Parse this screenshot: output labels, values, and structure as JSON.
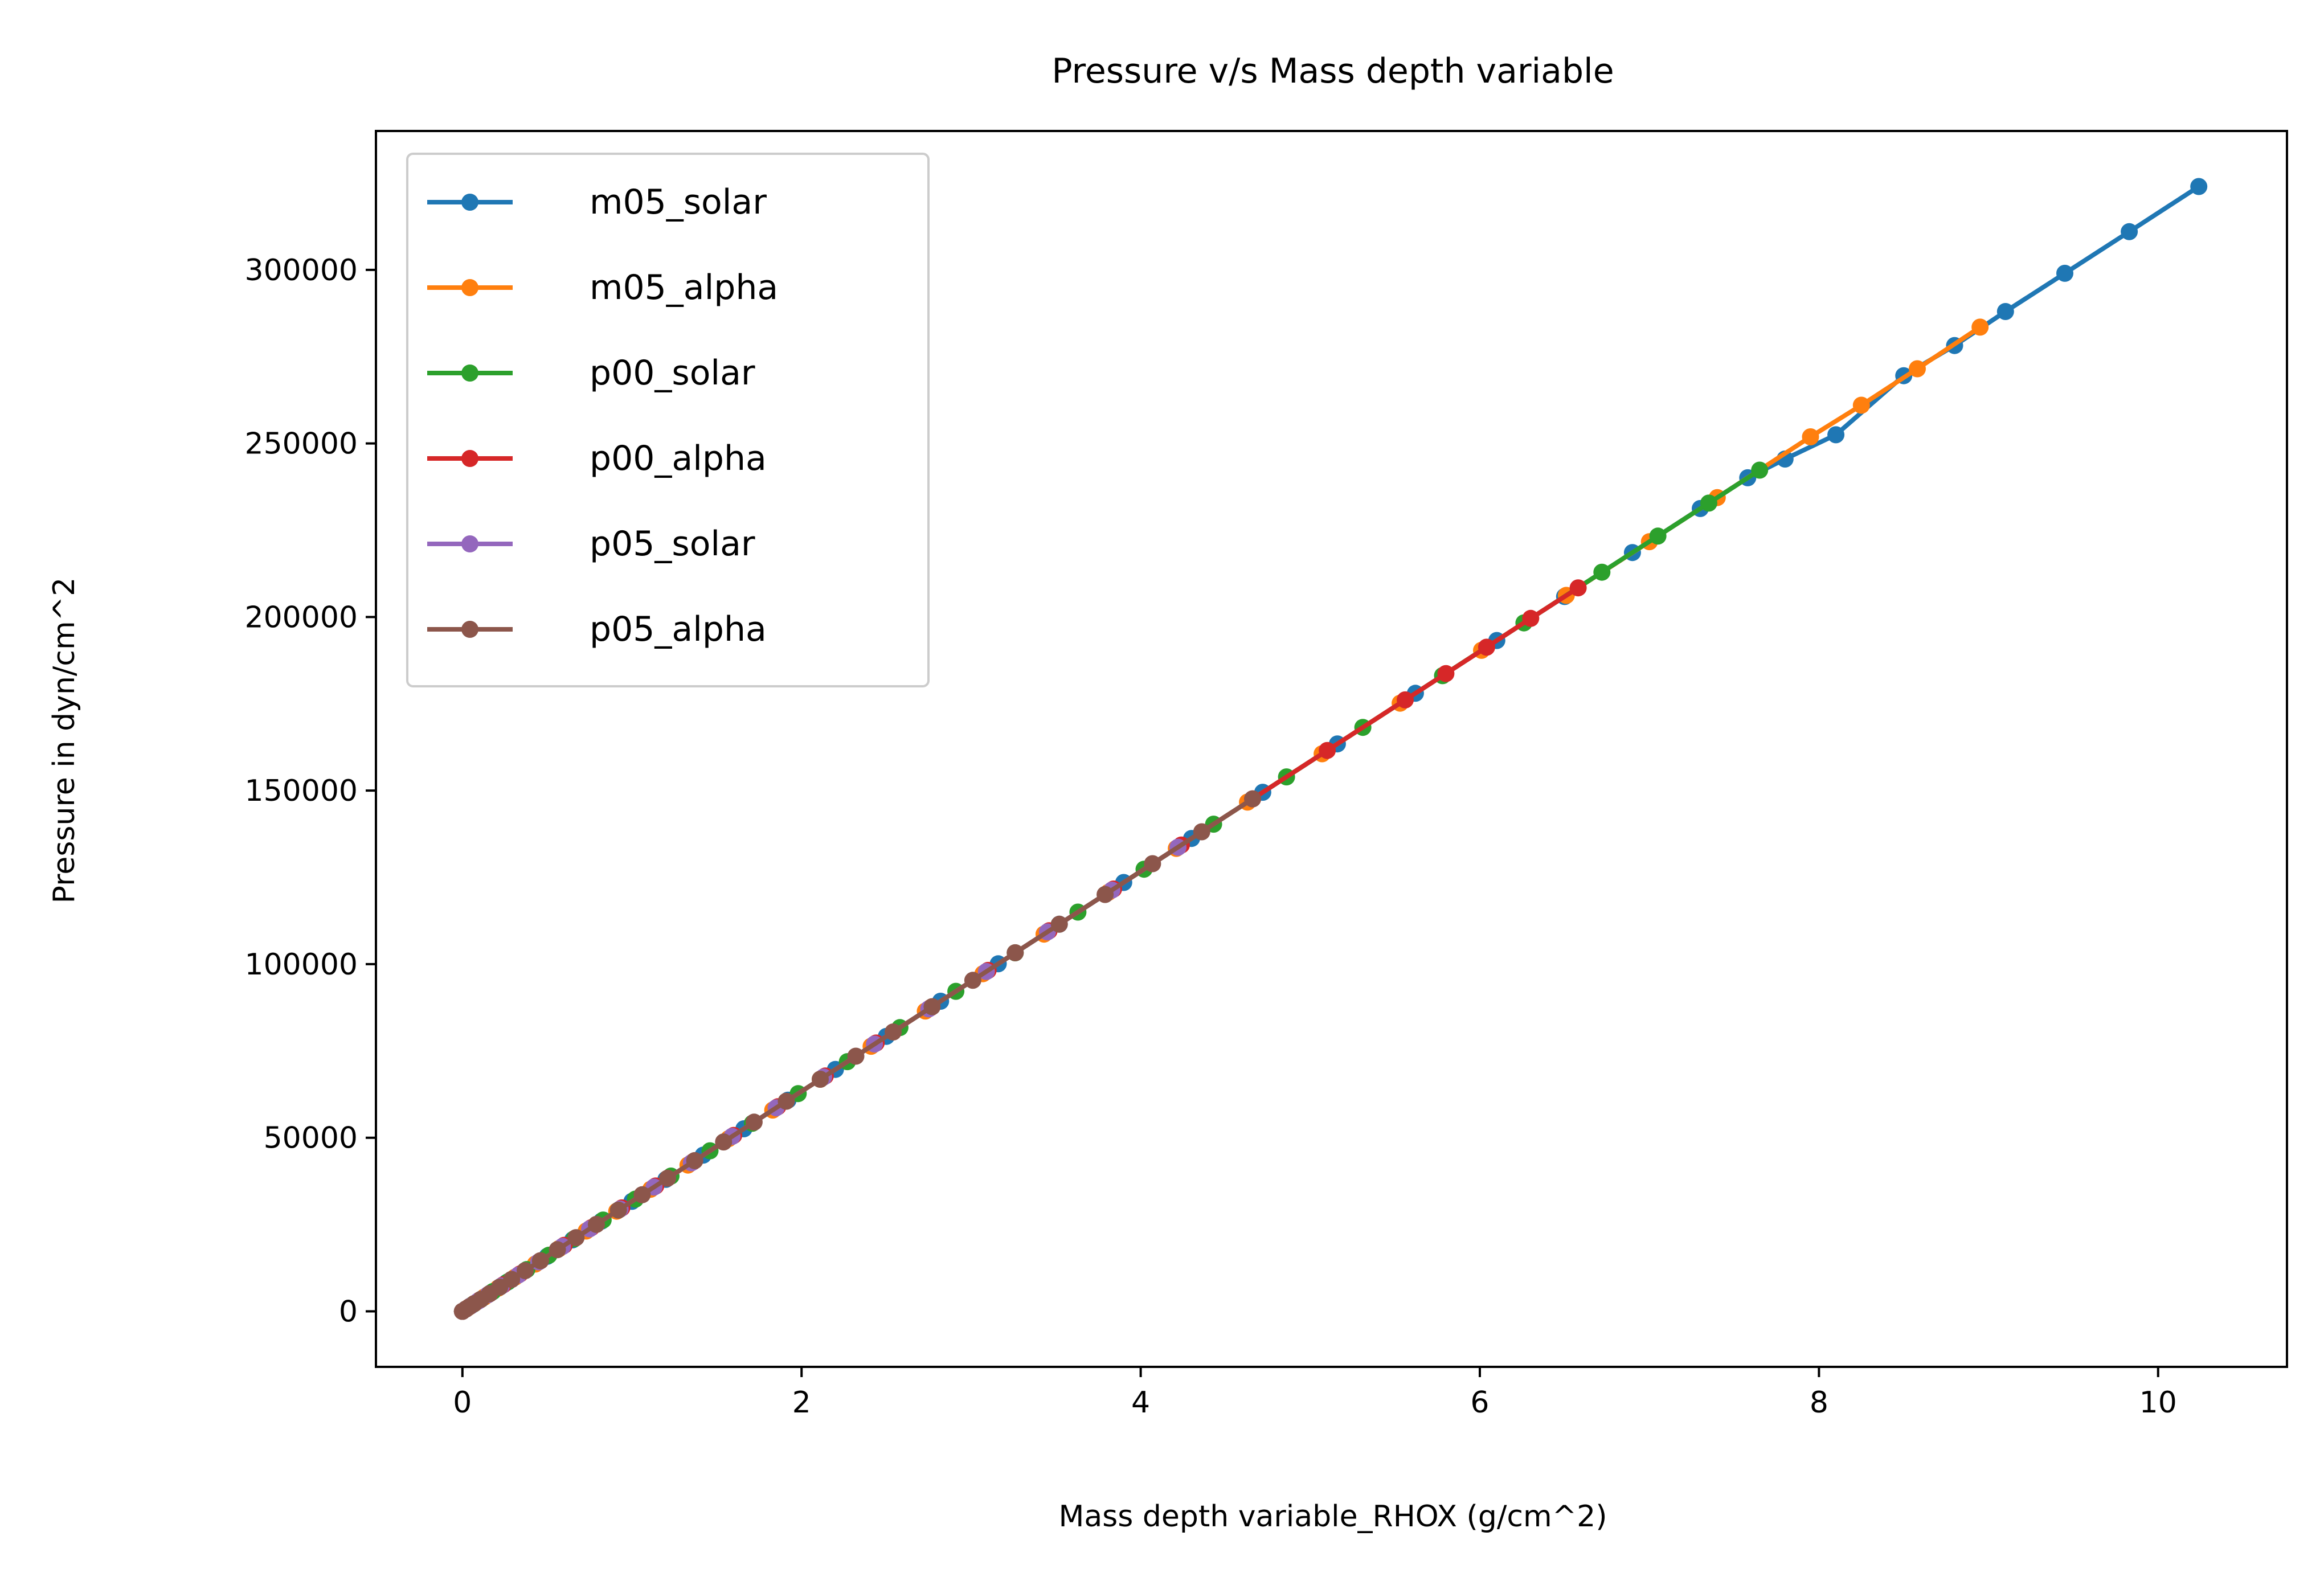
{
  "chart_data": {
    "type": "line",
    "title": "Pressure v/s Mass depth variable",
    "xlabel": "Mass depth variable_RHOX (g/cm^2)",
    "ylabel": "Pressure in dyn/cm^2",
    "xlim": [
      -0.51,
      10.76
    ],
    "ylim": [
      -16000,
      340000
    ],
    "xticks": [
      0,
      2,
      4,
      6,
      8,
      10
    ],
    "yticks": [
      0,
      50000,
      100000,
      150000,
      200000,
      250000,
      300000
    ],
    "xtick_labels": [
      "0",
      "2",
      "4",
      "6",
      "8",
      "10"
    ],
    "ytick_labels": [
      "0",
      "50000",
      "100000",
      "150000",
      "200000",
      "250000",
      "300000"
    ],
    "grid": false,
    "legend_position": "top-left",
    "series": [
      {
        "name": "m05_solar",
        "color": "#1f77b4",
        "x": [
          0,
          0.02,
          0.05,
          0.1,
          0.17,
          0.26,
          0.37,
          0.5,
          0.65,
          0.82,
          1.0,
          1.2,
          1.42,
          1.66,
          1.92,
          2.2,
          2.5,
          2.82,
          3.16,
          3.52,
          3.9,
          4.3,
          4.72,
          5.16,
          5.62,
          6.1,
          6.5,
          6.9,
          7.3,
          7.58,
          7.8,
          8.1,
          8.5,
          8.8,
          9.1,
          9.45,
          9.83,
          10.24
        ],
        "y": [
          0,
          630,
          1580,
          3170,
          5380,
          8240,
          11720,
          15840,
          20590,
          25970,
          31670,
          38010,
          44980,
          52580,
          60820,
          69690,
          79200,
          89330,
          100100,
          111500,
          123530,
          136210,
          149510,
          163450,
          178020,
          193230,
          205900,
          218570,
          231240,
          240100,
          245500,
          252500,
          269500,
          278200,
          288000,
          299000,
          311000,
          324000
        ]
      },
      {
        "name": "m05_alpha",
        "color": "#ff7f0e",
        "x": [
          0,
          0.03,
          0.07,
          0.13,
          0.21,
          0.31,
          0.43,
          0.57,
          0.73,
          0.91,
          1.11,
          1.33,
          1.57,
          1.83,
          2.11,
          2.41,
          2.73,
          3.07,
          3.43,
          3.81,
          4.21,
          4.63,
          5.07,
          5.53,
          6.01,
          6.51,
          7.0,
          7.4,
          7.95,
          8.25,
          8.58,
          8.95
        ],
        "y": [
          0,
          950,
          2220,
          4120,
          6650,
          9820,
          13620,
          18060,
          23130,
          28830,
          35160,
          42130,
          49730,
          57970,
          66840,
          76340,
          86480,
          97250,
          108650,
          120690,
          133360,
          146670,
          160610,
          175180,
          190390,
          206230,
          221700,
          234400,
          251900,
          261000,
          271500,
          283500
        ]
      },
      {
        "name": "p00_solar",
        "color": "#2ca02c",
        "x": [
          0,
          0.02,
          0.06,
          0.11,
          0.18,
          0.27,
          0.38,
          0.51,
          0.66,
          0.83,
          1.02,
          1.23,
          1.46,
          1.71,
          1.98,
          2.27,
          2.58,
          2.91,
          3.26,
          3.63,
          4.02,
          4.43,
          4.86,
          5.31,
          5.78,
          6.26,
          6.72,
          7.05,
          7.35,
          7.65
        ],
        "y": [
          0,
          630,
          1900,
          3480,
          5700,
          8550,
          12040,
          16160,
          20910,
          26290,
          32310,
          38960,
          46250,
          54170,
          62720,
          71910,
          81730,
          92180,
          103270,
          114990,
          127350,
          140330,
          153950,
          168200,
          183090,
          198300,
          212900,
          223300,
          232800,
          242300
        ]
      },
      {
        "name": "p00_alpha",
        "color": "#d62728",
        "x": [
          0,
          0.02,
          0.05,
          0.1,
          0.16,
          0.24,
          0.34,
          0.46,
          0.6,
          0.76,
          0.94,
          1.14,
          1.36,
          1.6,
          1.86,
          2.14,
          2.44,
          2.76,
          3.1,
          3.46,
          3.84,
          4.24,
          4.66,
          5.1,
          5.56,
          5.8,
          6.04,
          6.3,
          6.58
        ],
        "y": [
          0,
          630,
          1580,
          3170,
          5070,
          7600,
          10770,
          14570,
          19010,
          24080,
          29780,
          36110,
          43080,
          50680,
          58920,
          67790,
          77290,
          87430,
          98200,
          109610,
          121650,
          134320,
          147620,
          161560,
          176130,
          183700,
          191300,
          199600,
          208400
        ]
      },
      {
        "name": "p05_solar",
        "color": "#9467bd",
        "x": [
          0,
          0.02,
          0.05,
          0.09,
          0.15,
          0.23,
          0.33,
          0.45,
          0.59,
          0.75,
          0.93,
          1.13,
          1.35,
          1.59,
          1.85,
          2.13,
          2.43,
          2.75,
          3.09,
          3.45,
          3.83,
          4.22
        ],
        "y": [
          0,
          630,
          1580,
          2850,
          4750,
          7290,
          10450,
          14260,
          18690,
          23760,
          29460,
          35800,
          42770,
          50370,
          58610,
          67480,
          76980,
          87120,
          97890,
          109290,
          121330,
          133690
        ]
      },
      {
        "name": "p05_alpha",
        "color": "#8c564b",
        "x": [
          0,
          0.02,
          0.04,
          0.07,
          0.11,
          0.16,
          0.22,
          0.29,
          0.37,
          0.46,
          0.56,
          0.67,
          0.79,
          0.92,
          1.06,
          1.21,
          1.37,
          1.54,
          1.72,
          1.91,
          2.11,
          2.32,
          2.54,
          2.77,
          3.01,
          3.26,
          3.52,
          3.79,
          4.07,
          4.36,
          4.66
        ],
        "y": [
          0,
          630,
          1270,
          2220,
          3480,
          5070,
          6970,
          9190,
          11720,
          14570,
          17740,
          21230,
          25030,
          29150,
          33580,
          38330,
          43400,
          48790,
          54490,
          60510,
          66840,
          73500,
          80470,
          87750,
          95350,
          103280,
          111510,
          120070,
          128940,
          138130,
          147630
        ]
      }
    ]
  }
}
